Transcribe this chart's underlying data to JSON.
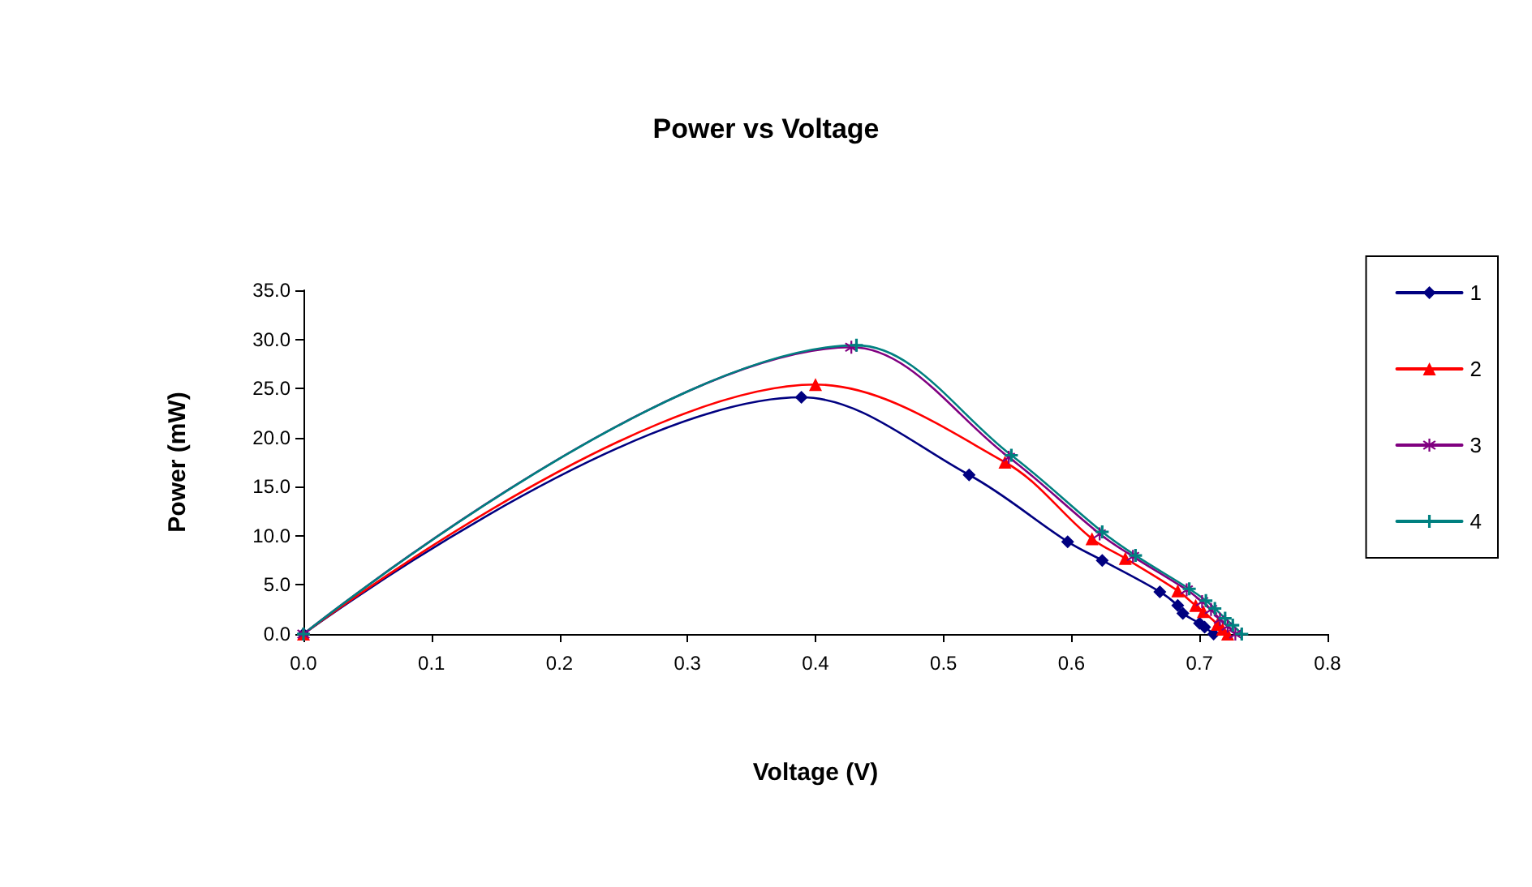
{
  "chart_data": {
    "type": "line",
    "title": "Power vs Voltage",
    "xlabel": "Voltage (V)",
    "ylabel": "Power (mW)",
    "xlim": [
      0,
      0.8
    ],
    "xticks": [
      {
        "value": 0,
        "label": "0.0"
      },
      {
        "value": 0.1,
        "label": "0.1"
      },
      {
        "value": 0.2,
        "label": "0.2"
      },
      {
        "value": 0.3,
        "label": "0.3"
      },
      {
        "value": 0.4,
        "label": "0.4"
      },
      {
        "value": 0.5,
        "label": "0.5"
      },
      {
        "value": 0.6,
        "label": "0.6"
      },
      {
        "value": 0.7,
        "label": "0.7"
      },
      {
        "value": 0.8,
        "label": "0.8"
      }
    ],
    "ylim": [
      0,
      35
    ],
    "yticks": [
      {
        "value": 0,
        "label": "0.0"
      },
      {
        "value": 5,
        "label": "5.0"
      },
      {
        "value": 10,
        "label": "10.0"
      },
      {
        "value": 15,
        "label": "15.0"
      },
      {
        "value": 20,
        "label": "20.0"
      },
      {
        "value": 25,
        "label": "25.0"
      },
      {
        "value": 30,
        "label": "30.0"
      },
      {
        "value": 35,
        "label": "35.0"
      }
    ],
    "grid": false,
    "legend": "right",
    "line_style": "solid",
    "series": [
      {
        "name": "1",
        "color": "#000080",
        "marker": "diamond",
        "x": [
          0,
          0.389,
          0.52,
          0.597,
          0.624,
          0.669,
          0.683,
          0.687,
          0.7,
          0.704,
          0.711
        ],
        "values": [
          0,
          24.1,
          16.2,
          9.4,
          7.5,
          4.3,
          2.9,
          2.1,
          1.1,
          0.7,
          0
        ]
      },
      {
        "name": "2",
        "color": "#ff0000",
        "marker": "triangle",
        "x": [
          0,
          0.4,
          0.548,
          0.616,
          0.642,
          0.683,
          0.697,
          0.703,
          0.714,
          0.718,
          0.722
        ],
        "values": [
          0,
          25.4,
          17.5,
          9.7,
          7.7,
          4.4,
          2.9,
          2.3,
          1.0,
          0.5,
          0
        ]
      },
      {
        "name": "3",
        "color": "#800080",
        "marker": "star",
        "x": [
          0,
          0.428,
          0.551,
          0.622,
          0.648,
          0.69,
          0.702,
          0.709,
          0.716,
          0.722,
          0.728
        ],
        "values": [
          0,
          29.2,
          18.0,
          10.2,
          7.9,
          4.5,
          3.3,
          2.5,
          1.5,
          0.8,
          0
        ]
      },
      {
        "name": "4",
        "color": "#008080",
        "marker": "cross",
        "x": [
          0,
          0.432,
          0.553,
          0.624,
          0.65,
          0.692,
          0.705,
          0.712,
          0.72,
          0.726,
          0.733
        ],
        "values": [
          0,
          29.4,
          18.2,
          10.4,
          8.0,
          4.6,
          3.4,
          2.6,
          1.6,
          0.9,
          0
        ]
      }
    ]
  }
}
